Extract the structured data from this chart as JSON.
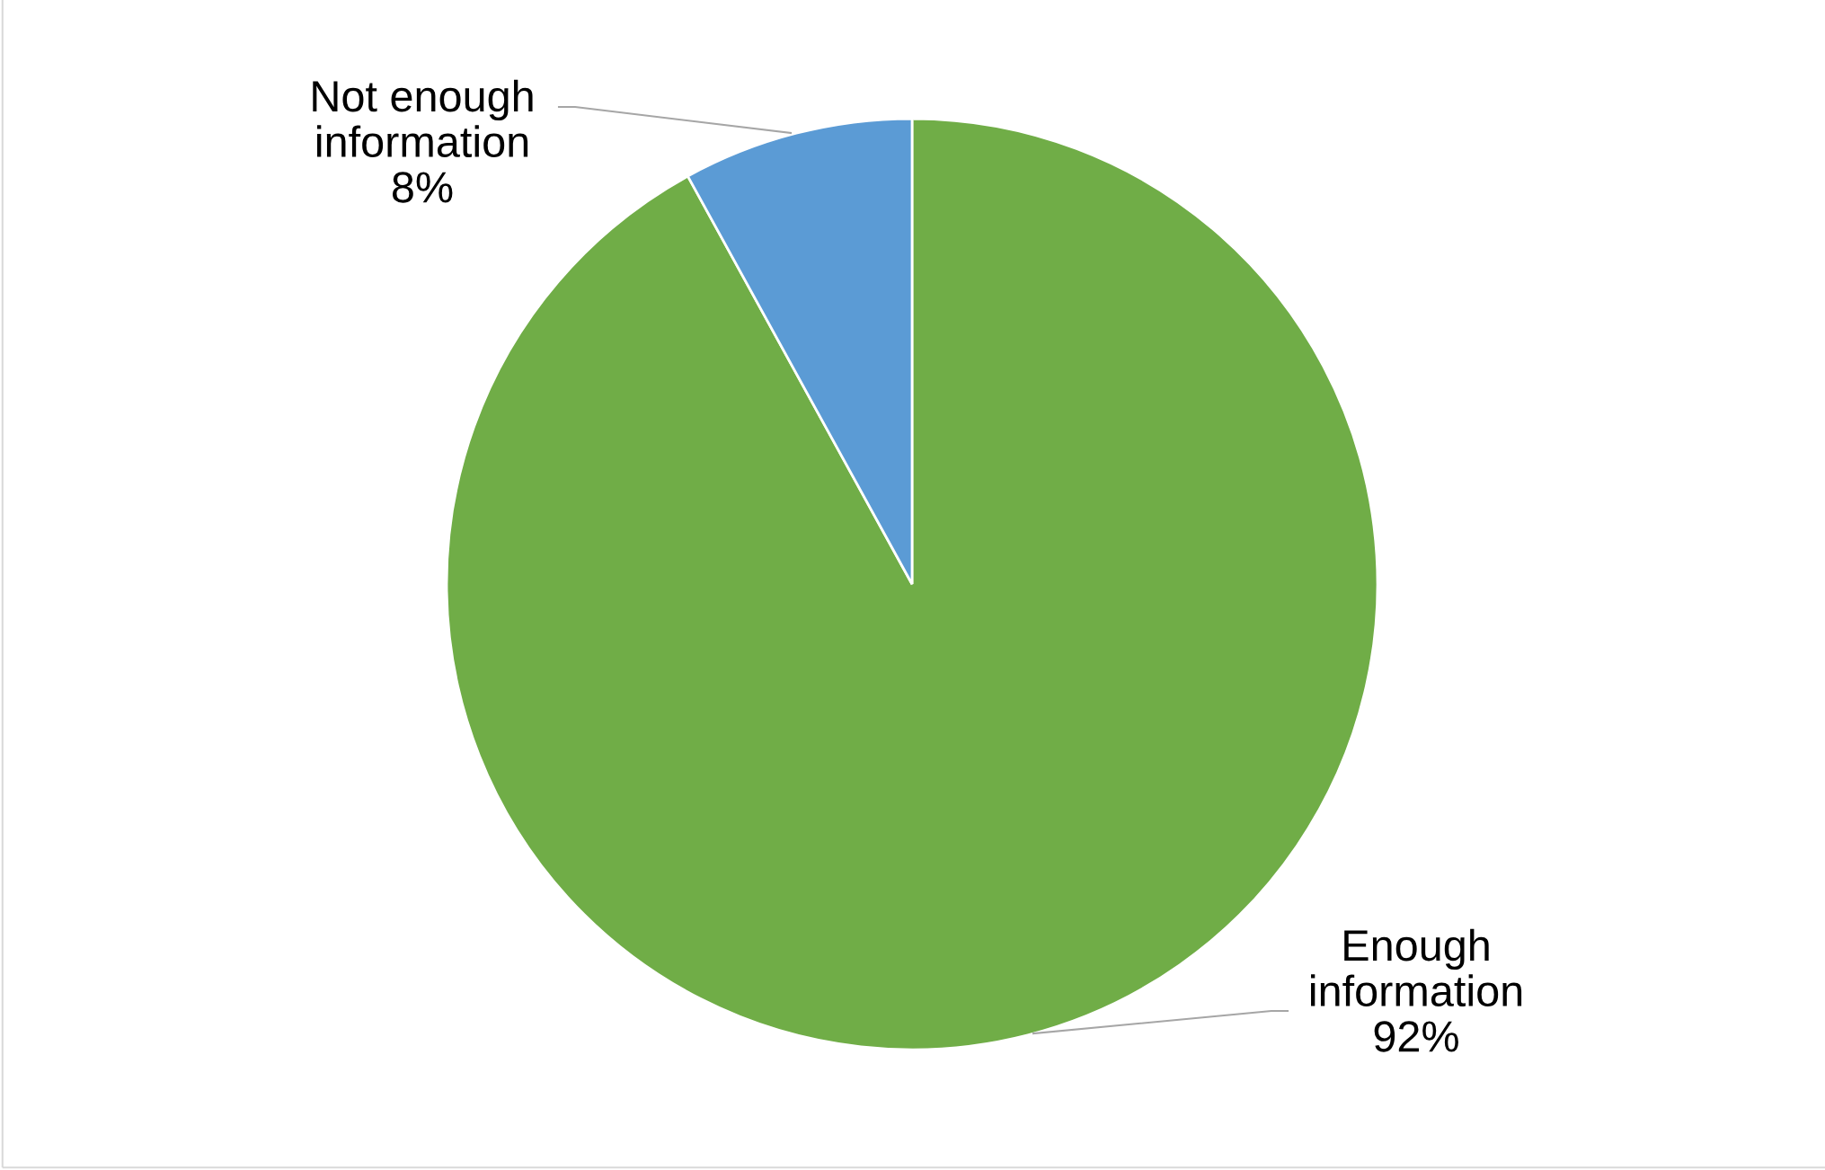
{
  "chart_data": {
    "type": "pie",
    "categories": [
      "Enough information",
      "Not enough information"
    ],
    "values": [
      92,
      8
    ],
    "colors": [
      "#70ad47",
      "#5b9bd5"
    ],
    "value_labels": [
      "92%",
      "8%"
    ]
  }
}
